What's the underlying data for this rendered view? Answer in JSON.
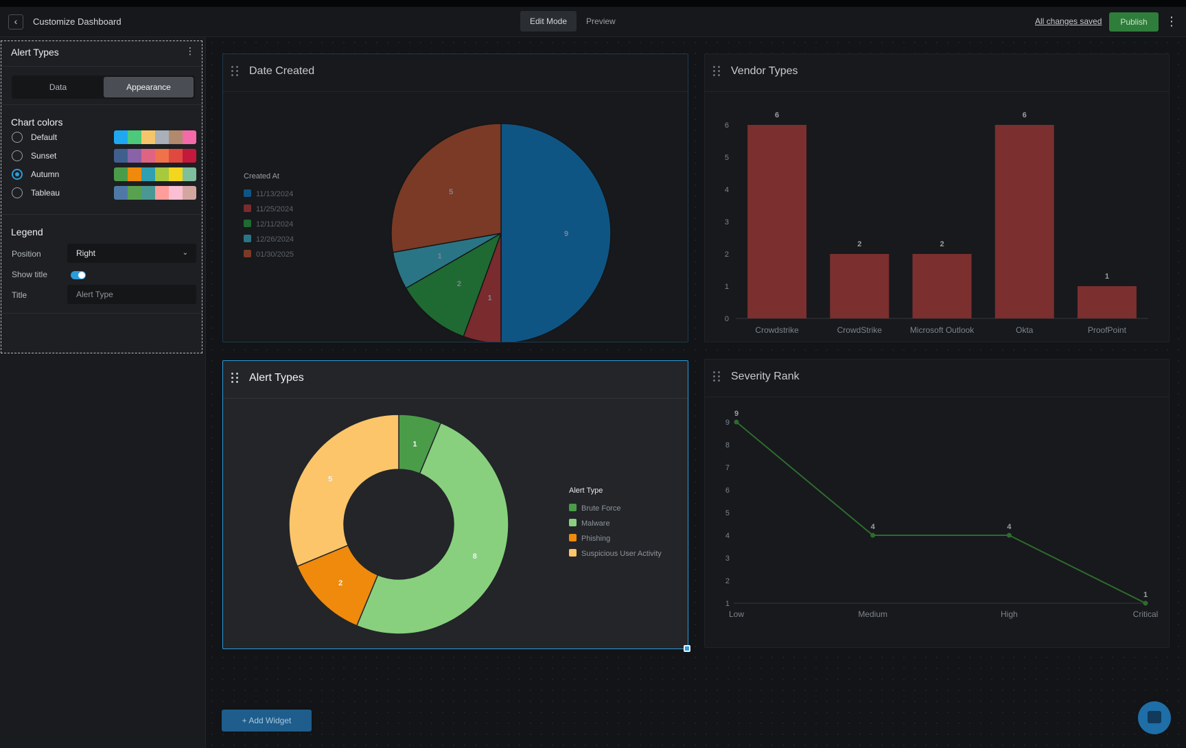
{
  "header": {
    "back_icon": "chevron-left-icon",
    "title": "Customize Dashboard",
    "tabs": [
      "Edit Mode",
      "Preview"
    ],
    "active_tab": "Edit Mode",
    "saved_status": "All changes saved",
    "publish_label": "Publish",
    "menu_icon": "vertical-dots-icon"
  },
  "config_panel": {
    "title": "Alert Types",
    "menu_icon": "vertical-dots-icon",
    "tabs": [
      "Data",
      "Appearance"
    ],
    "active_tab": "Appearance",
    "chart_colors_title": "Chart colors",
    "palettes": [
      {
        "name": "Default",
        "selected": false,
        "colors": [
          "#1fa8f0",
          "#4cc97a",
          "#f5c56b",
          "#a9b0ba",
          "#b18a6e",
          "#f46aa8"
        ]
      },
      {
        "name": "Sunset",
        "selected": false,
        "colors": [
          "#3f5f8f",
          "#8a62a8",
          "#e06383",
          "#f0724b",
          "#e0493f",
          "#c4183d"
        ]
      },
      {
        "name": "Autumn",
        "selected": true,
        "colors": [
          "#4b9c49",
          "#ef8a0c",
          "#2f9fb2",
          "#a6c93d",
          "#f4d61f",
          "#7fbf9c"
        ]
      },
      {
        "name": "Tableau",
        "selected": false,
        "colors": [
          "#4e79a7",
          "#59a14f",
          "#499894",
          "#ff9d9a",
          "#fabfd2",
          "#d4a6a0"
        ]
      }
    ],
    "legend_title": "Legend",
    "position_label": "Position",
    "position_value": "Right",
    "show_title_label": "Show title",
    "show_title_on": true,
    "title_label": "Title",
    "title_placeholder": "Alert Type"
  },
  "widgets": {
    "date_created": {
      "title": "Date Created"
    },
    "vendor_types": {
      "title": "Vendor Types"
    },
    "alert_types": {
      "title": "Alert Types"
    },
    "severity_rank": {
      "title": "Severity Rank"
    }
  },
  "add_widget_label": "+ Add Widget",
  "chart_data": [
    {
      "id": "date_created",
      "type": "pie",
      "legend_title": "Created At",
      "legend_position": "left",
      "categories": [
        "11/13/2024",
        "11/25/2024",
        "12/11/2024",
        "12/26/2024",
        "01/30/2025"
      ],
      "values": [
        9,
        1,
        2,
        1,
        5
      ],
      "colors": [
        "#0f5584",
        "#7a2b2d",
        "#1f6a32",
        "#2a7585",
        "#7b3a26"
      ]
    },
    {
      "id": "vendor_types",
      "type": "bar",
      "categories": [
        "Crowdstrike",
        "CrowdStrike",
        "Microsoft Outlook",
        "Okta",
        "ProofPoint"
      ],
      "values": [
        6,
        2,
        2,
        6,
        1
      ],
      "ylim": [
        0,
        6
      ],
      "yticks": [
        0,
        1,
        2,
        3,
        4,
        5,
        6
      ],
      "color": "#7b2f2f"
    },
    {
      "id": "alert_types",
      "type": "donut",
      "legend_title": "Alert Type",
      "legend_position": "right",
      "categories": [
        "Brute Force",
        "Malware",
        "Phishing",
        "Suspicious User Activity"
      ],
      "values": [
        1,
        8,
        2,
        5
      ],
      "colors": [
        "#4b9c49",
        "#88d07e",
        "#ef8a0c",
        "#fcc56a"
      ]
    },
    {
      "id": "severity_rank",
      "type": "line",
      "categories": [
        "Low",
        "Medium",
        "High",
        "Critical"
      ],
      "values": [
        9,
        4,
        4,
        1
      ],
      "ylim": [
        1,
        9
      ],
      "yticks": [
        1,
        2,
        3,
        4,
        5,
        6,
        7,
        8,
        9
      ],
      "color": "#2e6b2e"
    }
  ]
}
